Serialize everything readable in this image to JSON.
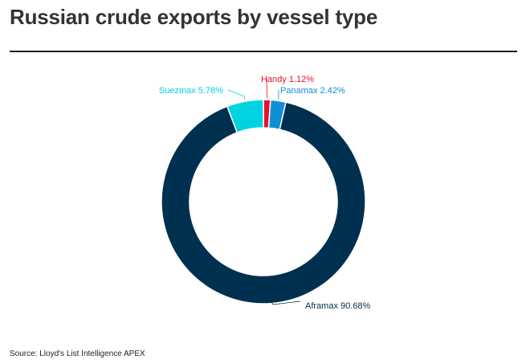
{
  "title": "Russian crude exports by vessel type",
  "source": "Source: Lloyd's List Intelligence APEX",
  "chart_data": {
    "type": "pie",
    "variant": "donut",
    "title": "Russian crude exports by vessel type",
    "unit": "%",
    "slices": [
      {
        "name": "Handy",
        "value": 1.12,
        "label": "Handy 1.12%",
        "color": "#e8112d"
      },
      {
        "name": "Panamax",
        "value": 2.42,
        "label": "Panamax 2.42%",
        "color": "#0f8fd4"
      },
      {
        "name": "Aframax",
        "value": 90.68,
        "label": "Aframax 90.68%",
        "color": "#00304f"
      },
      {
        "name": "Suezmax",
        "value": 5.78,
        "label": "Suezmax 5.78%",
        "color": "#00d3e0"
      }
    ]
  }
}
